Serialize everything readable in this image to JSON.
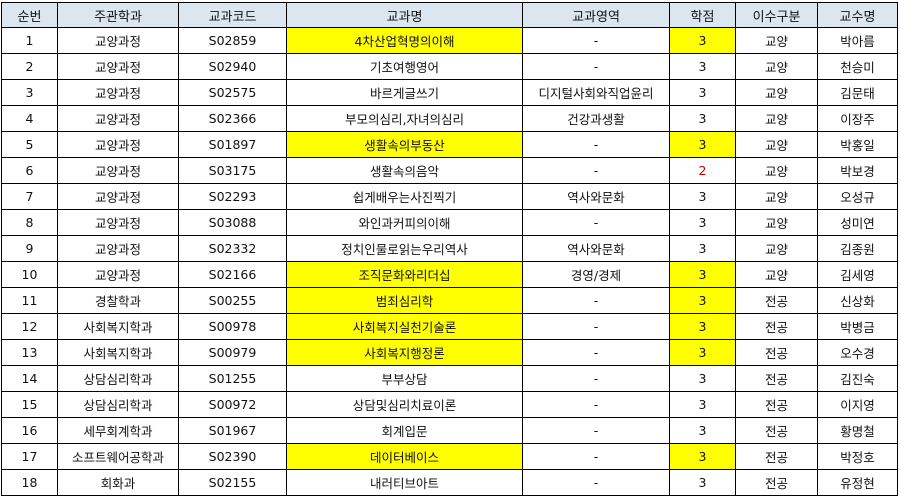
{
  "colors": {
    "header_bg": "#dce6f1",
    "highlight": "#ffff00",
    "warning_text": "#c00000"
  },
  "headers": [
    "순번",
    "주관학과",
    "교과코드",
    "교과명",
    "교과영역",
    "학점",
    "이수구분",
    "교수명"
  ],
  "rows": [
    {
      "no": "1",
      "dept": "교양과정",
      "code": "S02859",
      "name": "4차산업혁명의이해",
      "area": "-",
      "credit": "3",
      "type": "교양",
      "prof": "박아름",
      "highlight": true,
      "credit_red": false
    },
    {
      "no": "2",
      "dept": "교양과정",
      "code": "S02940",
      "name": "기초여행영어",
      "area": "-",
      "credit": "3",
      "type": "교양",
      "prof": "천승미",
      "highlight": false,
      "credit_red": false
    },
    {
      "no": "3",
      "dept": "교양과정",
      "code": "S02575",
      "name": "바르게글쓰기",
      "area": "디지털사회와직업윤리",
      "credit": "3",
      "type": "교양",
      "prof": "김문태",
      "highlight": false,
      "credit_red": false
    },
    {
      "no": "4",
      "dept": "교양과정",
      "code": "S02366",
      "name": "부모의심리,자녀의심리",
      "area": "건강과생활",
      "credit": "3",
      "type": "교양",
      "prof": "이장주",
      "highlight": false,
      "credit_red": false
    },
    {
      "no": "5",
      "dept": "교양과정",
      "code": "S01897",
      "name": "생활속의부동산",
      "area": "-",
      "credit": "3",
      "type": "교양",
      "prof": "박홍일",
      "highlight": true,
      "credit_red": false
    },
    {
      "no": "6",
      "dept": "교양과정",
      "code": "S03175",
      "name": "생활속의음악",
      "area": "-",
      "credit": "2",
      "type": "교양",
      "prof": "박보경",
      "highlight": false,
      "credit_red": true
    },
    {
      "no": "7",
      "dept": "교양과정",
      "code": "S02293",
      "name": "쉽게배우는사진찍기",
      "area": "역사와문화",
      "credit": "3",
      "type": "교양",
      "prof": "오성규",
      "highlight": false,
      "credit_red": false
    },
    {
      "no": "8",
      "dept": "교양과정",
      "code": "S03088",
      "name": "와인과커피의이해",
      "area": "-",
      "credit": "3",
      "type": "교양",
      "prof": "성미연",
      "highlight": false,
      "credit_red": false
    },
    {
      "no": "9",
      "dept": "교양과정",
      "code": "S02332",
      "name": "정치인물로읽는우리역사",
      "area": "역사와문화",
      "credit": "3",
      "type": "교양",
      "prof": "김종원",
      "highlight": false,
      "credit_red": false
    },
    {
      "no": "10",
      "dept": "교양과정",
      "code": "S02166",
      "name": "조직문화와리더십",
      "area": "경영/경제",
      "credit": "3",
      "type": "교양",
      "prof": "김세영",
      "highlight": true,
      "credit_red": false
    },
    {
      "no": "11",
      "dept": "경찰학과",
      "code": "S00255",
      "name": "범죄심리학",
      "area": "-",
      "credit": "3",
      "type": "전공",
      "prof": "신상화",
      "highlight": true,
      "credit_red": false
    },
    {
      "no": "12",
      "dept": "사회복지학과",
      "code": "S00978",
      "name": "사회복지실천기술론",
      "area": "-",
      "credit": "3",
      "type": "전공",
      "prof": "박병금",
      "highlight": true,
      "credit_red": false
    },
    {
      "no": "13",
      "dept": "사회복지학과",
      "code": "S00979",
      "name": "사회복지행정론",
      "area": "-",
      "credit": "3",
      "type": "전공",
      "prof": "오수경",
      "highlight": true,
      "credit_red": false
    },
    {
      "no": "14",
      "dept": "상담심리학과",
      "code": "S01255",
      "name": "부부상담",
      "area": "-",
      "credit": "3",
      "type": "전공",
      "prof": "김진숙",
      "highlight": false,
      "credit_red": false
    },
    {
      "no": "15",
      "dept": "상담심리학과",
      "code": "S00972",
      "name": "상담및심리치료이론",
      "area": "-",
      "credit": "3",
      "type": "전공",
      "prof": "이지영",
      "highlight": false,
      "credit_red": false
    },
    {
      "no": "16",
      "dept": "세무회계학과",
      "code": "S01967",
      "name": "회계입문",
      "area": "-",
      "credit": "3",
      "type": "전공",
      "prof": "황명철",
      "highlight": false,
      "credit_red": false
    },
    {
      "no": "17",
      "dept": "소프트웨어공학과",
      "code": "S02390",
      "name": "데이터베이스",
      "area": "-",
      "credit": "3",
      "type": "전공",
      "prof": "박정호",
      "highlight": true,
      "credit_red": false
    },
    {
      "no": "18",
      "dept": "회화과",
      "code": "S02155",
      "name": "내러티브아트",
      "area": "-",
      "credit": "3",
      "type": "전공",
      "prof": "유정현",
      "highlight": false,
      "credit_red": false
    }
  ]
}
